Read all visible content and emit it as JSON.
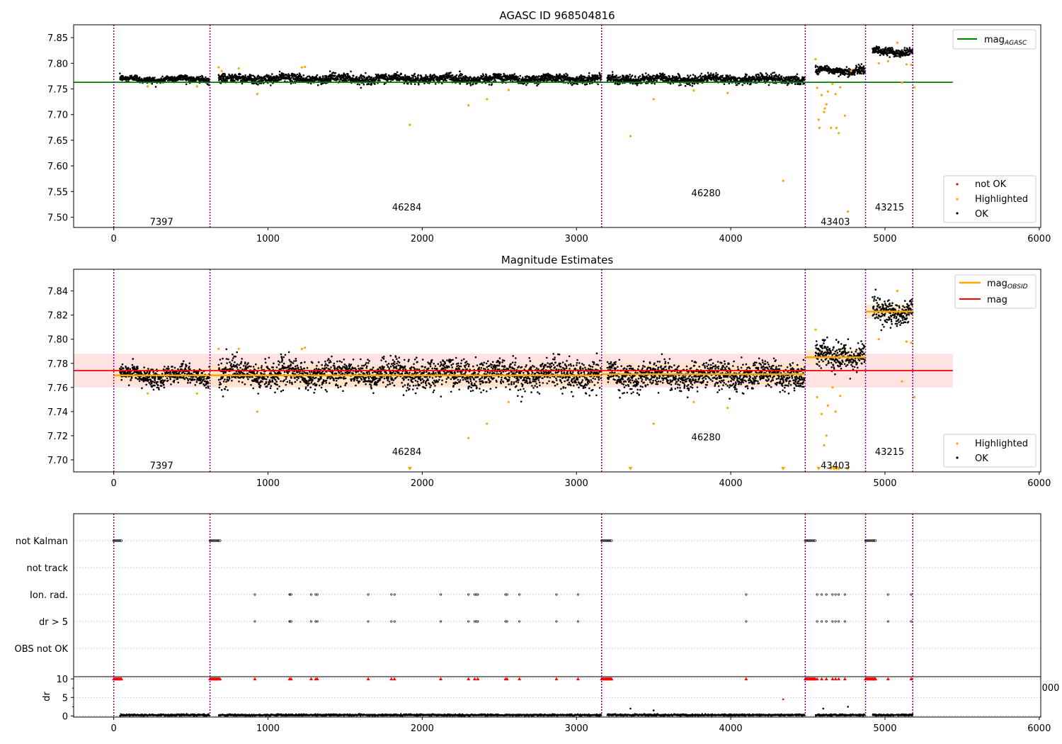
{
  "chart_data": [
    {
      "type": "scatter",
      "title": "AGASC ID 968504816",
      "xlim": [
        -260,
        6010
      ],
      "ylim": [
        7.48,
        7.875
      ],
      "xticks": [
        0,
        1000,
        2000,
        3000,
        4000,
        5000,
        6000
      ],
      "xtick_labels": [
        "0",
        "1000",
        "2000",
        "3000",
        "4000",
        "5000",
        "6000"
      ],
      "yticks": [
        7.5,
        7.55,
        7.6,
        7.65,
        7.7,
        7.75,
        7.8,
        7.85
      ],
      "ytick_labels": [
        "7.50",
        "7.55",
        "7.60",
        "7.65",
        "7.70",
        "7.75",
        "7.80",
        "7.85"
      ],
      "vlines": [
        0,
        624,
        3163,
        4483,
        4874,
        5180
      ],
      "obsids": [
        {
          "label": "7397",
          "x": 310,
          "y": 7.492
        },
        {
          "label": "46284",
          "x": 1900,
          "y": 7.52
        },
        {
          "label": "46280",
          "x": 3840,
          "y": 7.548
        },
        {
          "label": "43403",
          "x": 4678,
          "y": 7.492
        },
        {
          "label": "43215",
          "x": 5030,
          "y": 7.52
        }
      ],
      "hline": {
        "name": "mag",
        "subscript": "AGASC",
        "y": 7.763,
        "x0": -260,
        "x1": 5440,
        "color": "#008000"
      },
      "segments": [
        {
          "x0": 40,
          "x1": 620,
          "mean": 7.769,
          "sd": 0.004
        },
        {
          "x0": 680,
          "x1": 3160,
          "mean": 7.77,
          "sd": 0.0055
        },
        {
          "x0": 3200,
          "x1": 4480,
          "mean": 7.769,
          "sd": 0.0055
        },
        {
          "x0": 4550,
          "x1": 4870,
          "mean": 7.786,
          "sd": 0.005
        },
        {
          "x0": 4920,
          "x1": 5180,
          "mean": 7.823,
          "sd": 0.005
        }
      ],
      "highlighted": [
        [
          680,
          7.792
        ],
        [
          700,
          7.785
        ],
        [
          810,
          7.79
        ],
        [
          930,
          7.74
        ],
        [
          1220,
          7.792
        ],
        [
          1240,
          7.793
        ],
        [
          1920,
          7.68
        ],
        [
          2300,
          7.718
        ],
        [
          2420,
          7.73
        ],
        [
          2560,
          7.748
        ],
        [
          3350,
          7.658
        ],
        [
          3500,
          7.73
        ],
        [
          3760,
          7.747
        ],
        [
          3980,
          7.742
        ],
        [
          4340,
          7.571
        ],
        [
          4550,
          7.808
        ],
        [
          4560,
          7.752
        ],
        [
          4570,
          7.69
        ],
        [
          4575,
          7.674
        ],
        [
          4590,
          7.738
        ],
        [
          4605,
          7.705
        ],
        [
          4610,
          7.712
        ],
        [
          4620,
          7.72
        ],
        [
          4630,
          7.745
        ],
        [
          4650,
          7.674
        ],
        [
          4660,
          7.76
        ],
        [
          4680,
          7.74
        ],
        [
          4685,
          7.674
        ],
        [
          4700,
          7.664
        ],
        [
          4710,
          7.753
        ],
        [
          4740,
          7.698
        ],
        [
          4760,
          7.511
        ],
        [
          4780,
          7.785
        ],
        [
          4960,
          7.8
        ],
        [
          5020,
          7.804
        ],
        [
          5080,
          7.84
        ],
        [
          5110,
          7.762
        ],
        [
          5140,
          7.798
        ],
        [
          5170,
          7.797
        ],
        [
          5190,
          7.753
        ],
        [
          220,
          7.755
        ],
        [
          540,
          7.755
        ]
      ],
      "legend_top": {
        "name": "mag",
        "subscript": "AGASC",
        "placement": "top-right"
      },
      "legend_bottom": {
        "placement": "bottom-right",
        "entries": [
          {
            "name": "not OK",
            "color": "#ff0000"
          },
          {
            "name": "Highlighted",
            "color": "#ffa500"
          },
          {
            "name": "OK",
            "color": "#000000"
          }
        ]
      }
    },
    {
      "type": "scatter",
      "title": "Magnitude Estimates",
      "xlim": [
        -260,
        6010
      ],
      "ylim": [
        7.69,
        7.858
      ],
      "xticks": [
        0,
        1000,
        2000,
        3000,
        4000,
        5000,
        6000
      ],
      "xtick_labels": [
        "0",
        "1000",
        "2000",
        "3000",
        "4000",
        "5000",
        "6000"
      ],
      "yticks": [
        7.7,
        7.72,
        7.74,
        7.76,
        7.78,
        7.8,
        7.82,
        7.84
      ],
      "ytick_labels": [
        "7.70",
        "7.72",
        "7.74",
        "7.76",
        "7.78",
        "7.80",
        "7.82",
        "7.84"
      ],
      "vlines": [
        0,
        624,
        3163,
        4483,
        4874,
        5180
      ],
      "obsids": [
        {
          "label": "7397",
          "x": 310,
          "y": 7.6955
        },
        {
          "label": "46284",
          "x": 1900,
          "y": 7.707
        },
        {
          "label": "46280",
          "x": 3840,
          "y": 7.719
        },
        {
          "label": "43403",
          "x": 4678,
          "y": 7.6955
        },
        {
          "label": "43215",
          "x": 5030,
          "y": 7.707
        }
      ],
      "mag_line": {
        "name": "mag",
        "y": 7.774,
        "x0": -260,
        "x1": 5440,
        "band": [
          7.76,
          7.788
        ],
        "color": "#ff0000"
      },
      "obsid_mag": [
        {
          "x0": 0,
          "x1": 624,
          "y": 7.77,
          "band": [
            7.764,
            7.776
          ]
        },
        {
          "x0": 624,
          "x1": 3163,
          "y": 7.77,
          "band": [
            7.761,
            7.779
          ]
        },
        {
          "x0": 3163,
          "x1": 4483,
          "y": 7.771,
          "band": [
            7.762,
            7.78
          ]
        },
        {
          "x0": 4483,
          "x1": 4874,
          "y": 7.785,
          "band": [
            7.779,
            7.791
          ]
        },
        {
          "x0": 4874,
          "x1": 5180,
          "y": 7.823,
          "band": [
            7.817,
            7.829
          ]
        }
      ],
      "segments": [
        {
          "x0": 40,
          "x1": 620,
          "mean": 7.77,
          "sd": 0.005
        },
        {
          "x0": 680,
          "x1": 3160,
          "mean": 7.771,
          "sd": 0.0075
        },
        {
          "x0": 3200,
          "x1": 4480,
          "mean": 7.77,
          "sd": 0.0072
        },
        {
          "x0": 4550,
          "x1": 4870,
          "mean": 7.786,
          "sd": 0.007
        },
        {
          "x0": 4920,
          "x1": 5180,
          "mean": 7.823,
          "sd": 0.007
        }
      ],
      "highlighted": [
        [
          680,
          7.792
        ],
        [
          810,
          7.792
        ],
        [
          930,
          7.74
        ],
        [
          1220,
          7.792
        ],
        [
          1240,
          7.793
        ],
        [
          220,
          7.755
        ],
        [
          540,
          7.755
        ],
        [
          2300,
          7.718
        ],
        [
          2420,
          7.73
        ],
        [
          2560,
          7.748
        ],
        [
          3500,
          7.73
        ],
        [
          3760,
          7.748
        ],
        [
          3980,
          7.743
        ],
        [
          4550,
          7.808
        ],
        [
          4560,
          7.752
        ],
        [
          4590,
          7.738
        ],
        [
          4605,
          7.712
        ],
        [
          4620,
          7.72
        ],
        [
          4630,
          7.745
        ],
        [
          4660,
          7.76
        ],
        [
          4680,
          7.74
        ],
        [
          4710,
          7.753
        ],
        [
          4780,
          7.785
        ],
        [
          4960,
          7.8
        ],
        [
          5080,
          7.84
        ],
        [
          5110,
          7.765
        ],
        [
          5140,
          7.798
        ],
        [
          5170,
          7.797
        ],
        [
          5190,
          7.752
        ]
      ],
      "below_markers": [
        1920,
        3350,
        4340,
        4570,
        4650,
        4670,
        4685,
        4700,
        4760
      ],
      "legend_top": {
        "placement": "top-right",
        "entries": [
          {
            "name": "mag",
            "subscript": "OBSID",
            "color": "#ffa500"
          },
          {
            "name": "mag",
            "color": "#ff0000"
          }
        ]
      },
      "legend_bottom": {
        "placement": "bottom-right",
        "entries": [
          {
            "name": "Highlighted",
            "color": "#ffa500"
          },
          {
            "name": "OK",
            "color": "#000000"
          }
        ]
      }
    },
    {
      "type": "scatter",
      "title": "",
      "xlim": [
        -260,
        6010
      ],
      "flag_rows": [
        "not Kalman",
        "not track",
        "Ion. rad.",
        "dr > 5",
        "OBS not OK"
      ],
      "vlines": [
        0,
        624,
        3163,
        4483,
        4874,
        5180
      ],
      "not_kalman_ranges": [
        [
          0,
          50
        ],
        [
          624,
          690
        ],
        [
          3163,
          3230
        ],
        [
          4483,
          4550
        ],
        [
          4874,
          4940
        ]
      ],
      "ion_rad_x": [
        915,
        1140,
        1145,
        1150,
        1280,
        1310,
        1320,
        1650,
        1800,
        1820,
        2120,
        2300,
        2340,
        2350,
        2360,
        2540,
        2550,
        2630,
        2870,
        3010,
        4100,
        4560,
        4590,
        4620,
        4660,
        4680,
        4700,
        4740,
        5020,
        5170
      ],
      "xticks": [
        0,
        1000,
        2000,
        3000,
        4000,
        5000,
        6000
      ],
      "xtick_labels": [
        "0",
        "1000",
        "2000",
        "3000",
        "4000",
        "5000",
        "6000"
      ],
      "dr_panel": {
        "ylabel": "dr",
        "ylim": [
          -0.3,
          10.6
        ],
        "yticks": [
          0,
          5,
          10
        ],
        "ytick_labels": [
          "0",
          "5",
          "10"
        ],
        "clipped_value": 10,
        "clipped_ranges": [
          [
            0,
            50
          ],
          [
            624,
            690
          ],
          [
            3163,
            3230
          ],
          [
            4483,
            4550
          ],
          [
            4874,
            4940
          ]
        ],
        "clipped_points": [
          915,
          1140,
          1150,
          1280,
          1310,
          1320,
          1650,
          1800,
          1820,
          2120,
          2300,
          2340,
          2360,
          2540,
          2550,
          2630,
          2870,
          3010,
          4100,
          4560,
          4590,
          4620,
          4660,
          4680,
          4700,
          4740,
          5020,
          5170
        ],
        "outliers": [
          [
            4340,
            4.5
          ],
          [
            3350,
            2.0
          ],
          [
            3500,
            1.5
          ],
          [
            4760,
            2.5
          ],
          [
            4600,
            2.0
          ]
        ],
        "partial_tick_label": "000"
      }
    }
  ],
  "colors": {
    "ok": "#000000",
    "highlighted": "#ffa500",
    "not_ok": "#ff0000",
    "agasc_line": "#008000",
    "mag_line": "#ff0000",
    "obsid_line": "#ffa500",
    "vline": "#800080",
    "band_red": "#ffdddd",
    "band_orange": "#ffe4c4",
    "grid": "#b0b0b0"
  }
}
